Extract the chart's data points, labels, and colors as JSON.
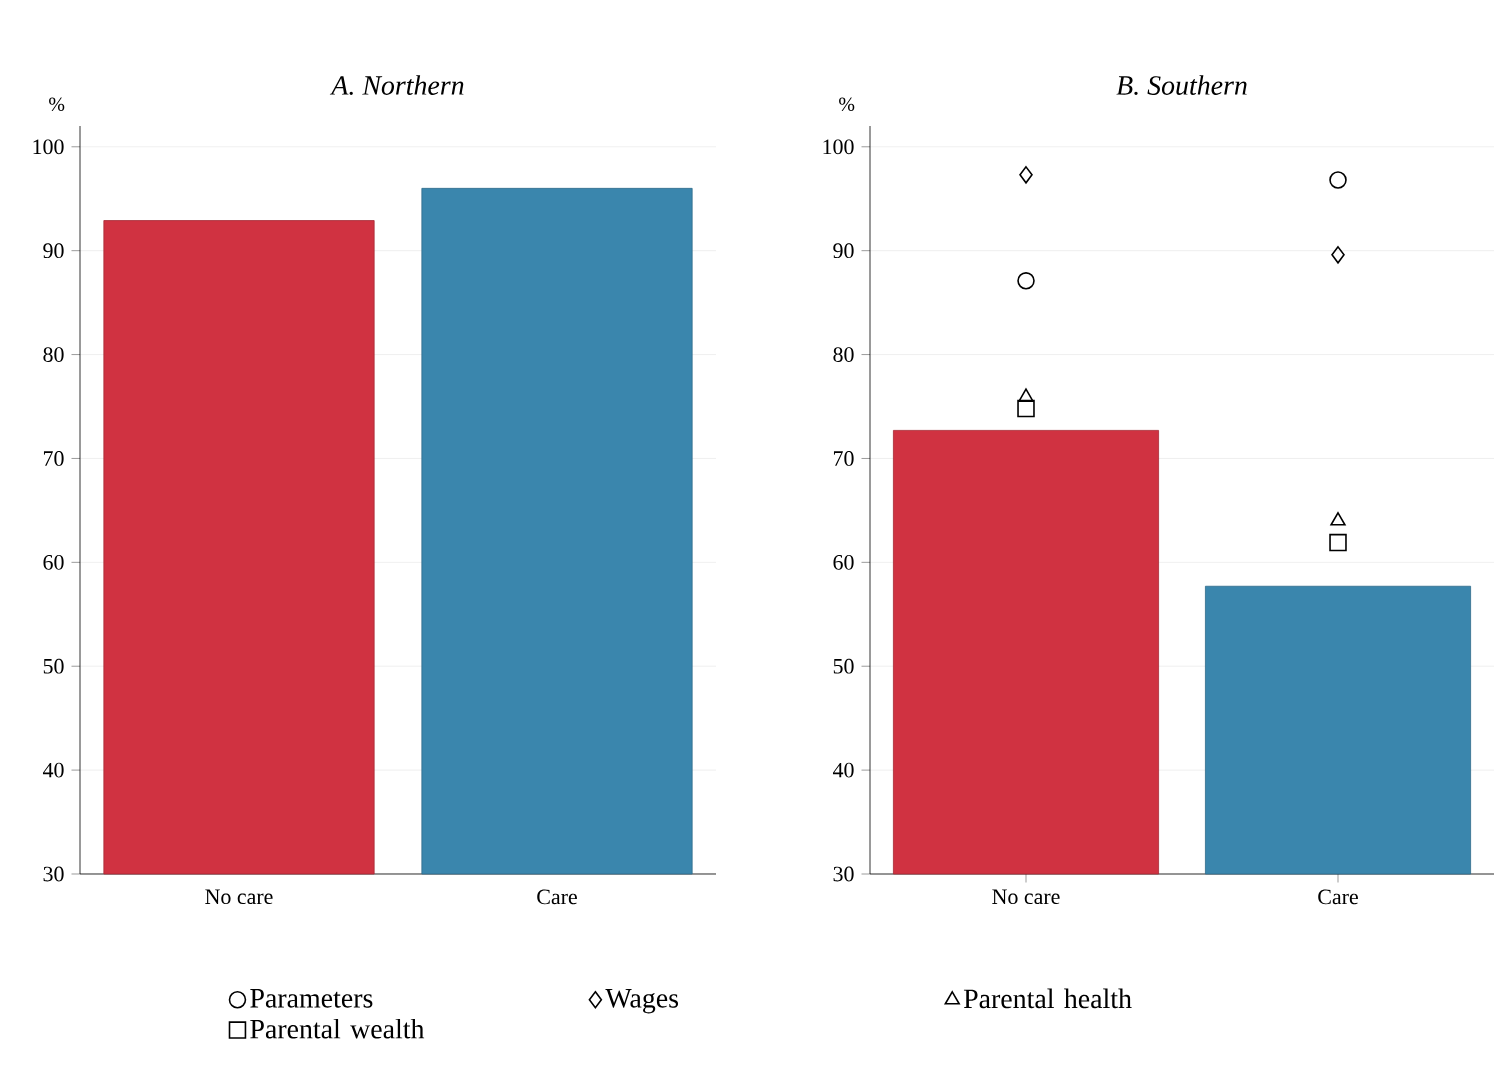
{
  "chart_data": [
    {
      "type": "bar",
      "title": "A. Northern",
      "ylabel": "%",
      "categories": [
        "No care",
        "Care"
      ],
      "values": [
        92.9,
        96.0
      ],
      "colors": [
        "#d03241",
        "#3a86ad"
      ],
      "ylim": [
        30,
        102
      ],
      "yticks": [
        30,
        40,
        50,
        60,
        70,
        80,
        90,
        100
      ],
      "grid": "y"
    },
    {
      "type": "bar",
      "title": "B. Southern",
      "ylabel": "%",
      "categories": [
        "No care",
        "Care"
      ],
      "ylim": [
        30,
        102
      ],
      "yticks": [
        30,
        40,
        50,
        60,
        70,
        80,
        90,
        100
      ],
      "grid": "y",
      "legend": "bottom",
      "series": [
        {
          "type": "bar",
          "values": [
            72.7,
            57.7
          ],
          "colors": [
            "#d03241",
            "#3a86ad"
          ]
        },
        {
          "type": "scatter",
          "name": "Parameters",
          "marker": "circle",
          "color": "#000000",
          "values": [
            87.1,
            96.8
          ]
        },
        {
          "type": "scatter",
          "name": "Wages",
          "marker": "diamond",
          "color": "#000000",
          "values": [
            97.3,
            89.6
          ]
        },
        {
          "type": "scatter",
          "name": "Parental health",
          "marker": "triangle",
          "color": "#000000",
          "values": [
            75.9,
            64.0
          ]
        },
        {
          "type": "scatter",
          "name": "Parental wealth",
          "marker": "square",
          "color": "#000000",
          "values": [
            74.8,
            61.9
          ]
        }
      ]
    }
  ]
}
